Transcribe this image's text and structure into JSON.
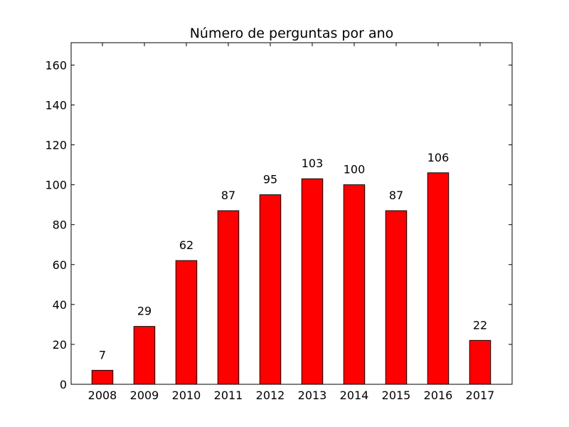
{
  "chart_data": {
    "type": "bar",
    "title": "Número de perguntas por ano",
    "xlabel": "",
    "ylabel": "",
    "categories": [
      "2008",
      "2009",
      "2010",
      "2011",
      "2012",
      "2013",
      "2014",
      "2015",
      "2016",
      "2017"
    ],
    "values": [
      7,
      29,
      62,
      87,
      95,
      103,
      100,
      87,
      106,
      22
    ],
    "data_labels": [
      "7",
      "29",
      "62",
      "87",
      "95",
      "103",
      "100",
      "87",
      "106",
      "22"
    ],
    "ylim": [
      0,
      171.2
    ],
    "yticks": [
      0,
      20,
      40,
      60,
      80,
      100,
      120,
      140,
      160
    ],
    "ytick_labels": [
      "0",
      "20",
      "40",
      "60",
      "80",
      "100",
      "120",
      "140",
      "160"
    ],
    "grid": false,
    "legend": "none",
    "colors": {
      "bar_fill": "#ff0000",
      "bar_edge": "#000000",
      "axis": "#000000",
      "background": "#ffffff"
    }
  }
}
